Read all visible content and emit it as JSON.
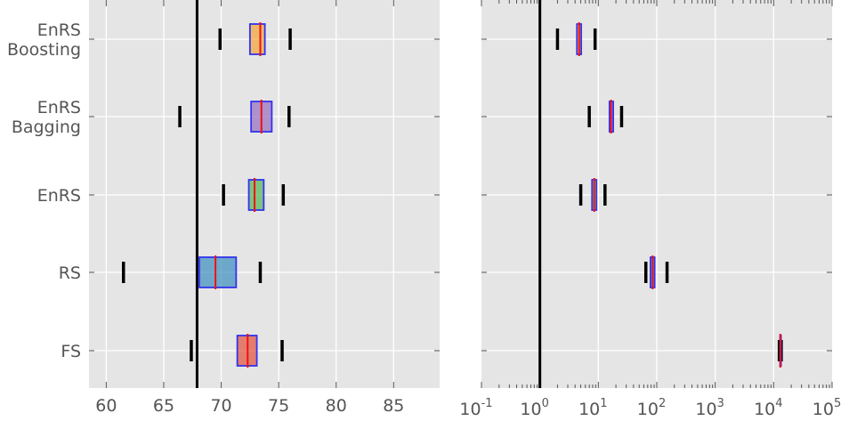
{
  "chart_data": [
    {
      "type": "box",
      "orientation": "horizontal",
      "categories": [
        "FS",
        "RS",
        "EnRS",
        "EnRS\nBagging",
        "EnRS\nBoosting"
      ],
      "category_labels": [
        [
          "FS"
        ],
        [
          "RS"
        ],
        [
          "EnRS"
        ],
        [
          "EnRS",
          "Bagging"
        ],
        [
          "EnRS",
          "Boosting"
        ]
      ],
      "xlim": [
        58.5,
        89
      ],
      "xticks": [
        60,
        65,
        70,
        75,
        80,
        85
      ],
      "xtick_labels": [
        "60",
        "65",
        "70",
        "75",
        "80",
        "85"
      ],
      "reference_line": 67.9,
      "grid": true,
      "boxes": [
        {
          "category": "FS",
          "whisker_low": 67.4,
          "q1": 71.4,
          "median": 72.3,
          "q3": 73.1,
          "whisker_high": 75.3,
          "color": "#e24a33"
        },
        {
          "category": "RS",
          "whisker_low": 61.5,
          "q1": 68.1,
          "median": 69.5,
          "q3": 71.3,
          "whisker_high": 73.4,
          "color": "#348abd"
        },
        {
          "category": "EnRS",
          "whisker_low": 70.2,
          "q1": 72.4,
          "median": 72.9,
          "q3": 73.7,
          "whisker_high": 75.4,
          "color": "#4caf50"
        },
        {
          "category": "EnRS\nBagging",
          "whisker_low": 66.4,
          "q1": 72.6,
          "median": 73.5,
          "q3": 74.4,
          "whisker_high": 75.9,
          "color": "#9467bd"
        },
        {
          "category": "EnRS\nBoosting",
          "whisker_low": 69.9,
          "q1": 72.5,
          "median": 73.4,
          "q3": 73.8,
          "whisker_high": 76.0,
          "color": "#f5a030"
        }
      ]
    },
    {
      "type": "box",
      "orientation": "horizontal",
      "xscale": "log",
      "xlim": [
        0.1,
        100000
      ],
      "xticks": [
        0.1,
        1,
        10,
        100,
        1000,
        10000,
        100000
      ],
      "xtick_labels": [
        {
          "base": "10",
          "exp": "-1"
        },
        {
          "base": "10",
          "exp": "0"
        },
        {
          "base": "10",
          "exp": "1"
        },
        {
          "base": "10",
          "exp": "2"
        },
        {
          "base": "10",
          "exp": "3"
        },
        {
          "base": "10",
          "exp": "4"
        },
        {
          "base": "10",
          "exp": "5"
        }
      ],
      "reference_line": 1,
      "grid": true,
      "boxes": [
        {
          "category": "FS",
          "whisker_low": 12500,
          "q1": 12900,
          "median": 13000,
          "q3": 13100,
          "whisker_high": 13500,
          "color": "#e24a33"
        },
        {
          "category": "RS",
          "whisker_low": 65,
          "q1": 78,
          "median": 85,
          "q3": 92,
          "whisker_high": 150,
          "color": "#348abd"
        },
        {
          "category": "EnRS",
          "whisker_low": 5,
          "q1": 7.8,
          "median": 8.5,
          "q3": 9.3,
          "whisker_high": 13,
          "color": "#4caf50"
        },
        {
          "category": "EnRS\nBagging",
          "whisker_low": 7,
          "q1": 15.5,
          "median": 16.5,
          "q3": 18,
          "whisker_high": 25,
          "color": "#9467bd"
        },
        {
          "category": "EnRS\nBoosting",
          "whisker_low": 2,
          "q1": 4.3,
          "median": 4.7,
          "q3": 5.1,
          "whisker_high": 8.8,
          "color": "#f5a030"
        }
      ]
    }
  ],
  "colors": {
    "plot_background": "#e5e5e5",
    "grid": "#ffffff",
    "box_edge": "#3333ee",
    "median": "#ee1111",
    "whisker_cap": "#000000",
    "reference_line": "#000000",
    "tick_text": "#555555"
  }
}
